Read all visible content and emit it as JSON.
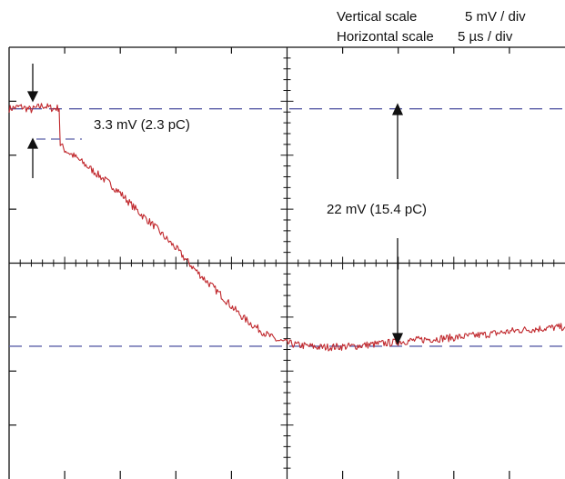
{
  "scale_info": {
    "vertical_label": "Vertical scale",
    "vertical_value": "5 mV / div",
    "horizontal_label": "Horizontal scale",
    "horizontal_value": "5 µs / div"
  },
  "annotations": {
    "step": "3.3 mV (2.3 pC)",
    "total": "22 mV (15.4 pC)"
  },
  "colors": {
    "trace": "#c0282d",
    "reference": "#5b5fa8",
    "grid": "#111111"
  },
  "chart_data": {
    "type": "line",
    "title": "",
    "xlabel": "",
    "ylabel": "",
    "grid": true,
    "x_unit": "µs",
    "y_unit": "mV",
    "xlim": [
      -25,
      25
    ],
    "ylim": [
      -20,
      20
    ],
    "x_major_per_division": 5,
    "y_major_per_division": 5,
    "reference_levels": [
      14.3,
      -7.7
    ],
    "series": [
      {
        "noise_mV": 0.35,
        "points": [
          [
            -25,
            14.3
          ],
          [
            -24,
            14.5
          ],
          [
            -23,
            14.2
          ],
          [
            -22,
            14.6
          ],
          [
            -21,
            14.3
          ],
          [
            -20.5,
            14.4
          ],
          [
            -20.4,
            11.0
          ],
          [
            -20,
            10.5
          ],
          [
            -19,
            9.8
          ],
          [
            -18,
            9.0
          ],
          [
            -17,
            8.2
          ],
          [
            -16,
            7.4
          ],
          [
            -15,
            6.5
          ],
          [
            -14,
            5.4
          ],
          [
            -13,
            4.4
          ],
          [
            -12,
            3.5
          ],
          [
            -11,
            2.4
          ],
          [
            -10,
            1.4
          ],
          [
            -9,
            0.2
          ],
          [
            -8,
            -0.9
          ],
          [
            -7,
            -1.9
          ],
          [
            -6,
            -2.9
          ],
          [
            -5,
            -4.0
          ],
          [
            -4,
            -5.0
          ],
          [
            -3,
            -5.8
          ],
          [
            -2,
            -6.5
          ],
          [
            -1,
            -7.1
          ],
          [
            0,
            -7.4
          ],
          [
            1,
            -7.6
          ],
          [
            3,
            -7.8
          ],
          [
            6,
            -7.7
          ],
          [
            9,
            -7.4
          ],
          [
            12,
            -7.1
          ],
          [
            15,
            -6.9
          ],
          [
            18,
            -6.6
          ],
          [
            21,
            -6.2
          ],
          [
            25,
            -5.9
          ]
        ]
      }
    ]
  }
}
